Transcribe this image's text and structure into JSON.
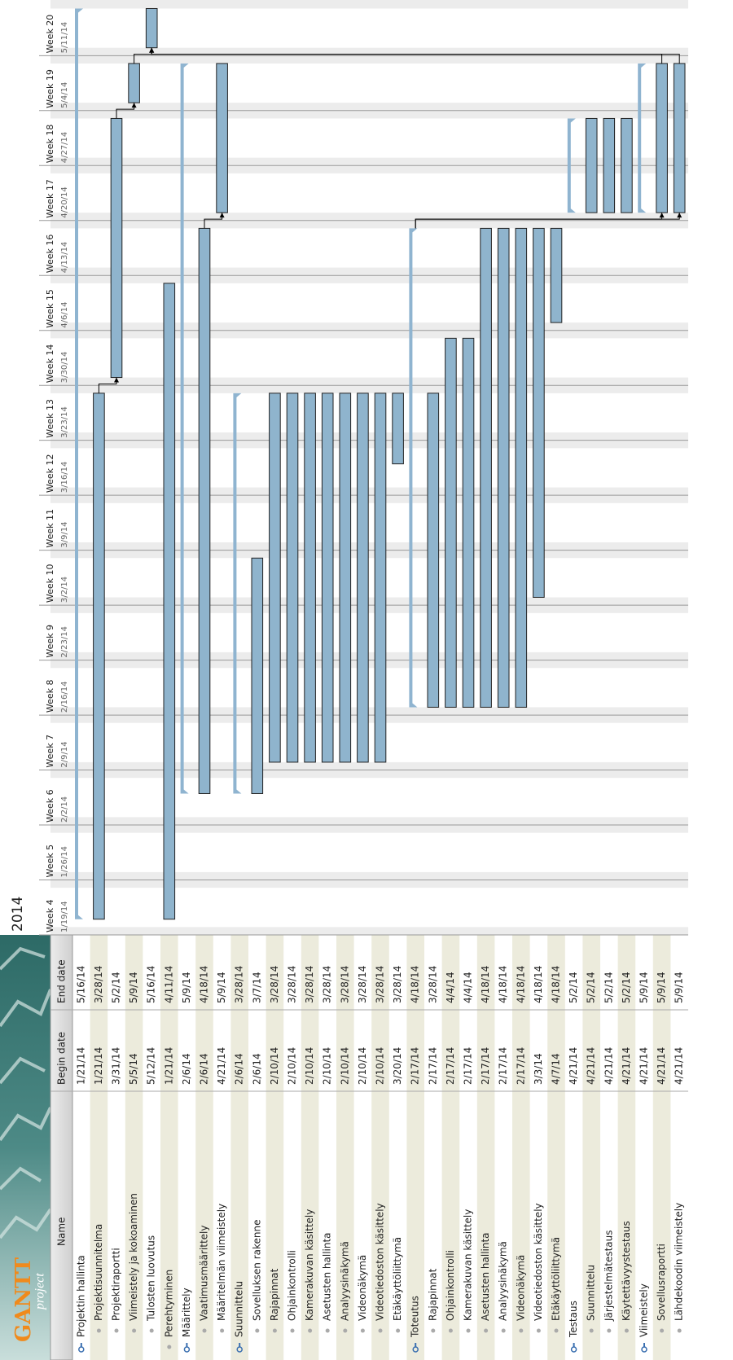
{
  "header": {
    "logo": "GANTT",
    "logo_sub": "project",
    "year": "2014"
  },
  "table": {
    "columns": [
      "Name",
      "Begin date",
      "End date"
    ],
    "rows": [
      {
        "name": "Projektin hallinta",
        "begin": "1/21/14",
        "end": "5/16/14",
        "level": 0,
        "summary": true
      },
      {
        "name": "Projektisuunnitelma",
        "begin": "1/21/14",
        "end": "3/28/14",
        "level": 1,
        "summary": false
      },
      {
        "name": "Projektiraportti",
        "begin": "3/31/14",
        "end": "5/2/14",
        "level": 1,
        "summary": false
      },
      {
        "name": "Viimeistely ja kokoaminen",
        "begin": "5/5/14",
        "end": "5/9/14",
        "level": 1,
        "summary": false
      },
      {
        "name": "Tulosten luovutus",
        "begin": "5/12/14",
        "end": "5/16/14",
        "level": 1,
        "summary": false
      },
      {
        "name": "Perehtyminen",
        "begin": "1/21/14",
        "end": "4/11/14",
        "level": 0,
        "summary": false
      },
      {
        "name": "Määrittely",
        "begin": "2/6/14",
        "end": "5/9/14",
        "level": 0,
        "summary": true
      },
      {
        "name": "Vaatimusmäärittely",
        "begin": "2/6/14",
        "end": "4/18/14",
        "level": 1,
        "summary": false
      },
      {
        "name": "Määritelmän viimeistely",
        "begin": "4/21/14",
        "end": "5/9/14",
        "level": 1,
        "summary": false
      },
      {
        "name": "Suunnittelu",
        "begin": "2/6/14",
        "end": "3/28/14",
        "level": 0,
        "summary": true
      },
      {
        "name": "Sovelluksen rakenne",
        "begin": "2/6/14",
        "end": "3/7/14",
        "level": 1,
        "summary": false
      },
      {
        "name": "Rajapinnat",
        "begin": "2/10/14",
        "end": "3/28/14",
        "level": 1,
        "summary": false
      },
      {
        "name": "Ohjainkontrolli",
        "begin": "2/10/14",
        "end": "3/28/14",
        "level": 1,
        "summary": false
      },
      {
        "name": "Kamerakuvan käsittely",
        "begin": "2/10/14",
        "end": "3/28/14",
        "level": 1,
        "summary": false
      },
      {
        "name": "Asetusten hallinta",
        "begin": "2/10/14",
        "end": "3/28/14",
        "level": 1,
        "summary": false
      },
      {
        "name": "Analyysinäkymä",
        "begin": "2/10/14",
        "end": "3/28/14",
        "level": 1,
        "summary": false
      },
      {
        "name": "Videonäkymä",
        "begin": "2/10/14",
        "end": "3/28/14",
        "level": 1,
        "summary": false
      },
      {
        "name": "Videotiedoston käsittely",
        "begin": "2/10/14",
        "end": "3/28/14",
        "level": 1,
        "summary": false
      },
      {
        "name": "Etäkäyttöliittymä",
        "begin": "3/20/14",
        "end": "3/28/14",
        "level": 1,
        "summary": false
      },
      {
        "name": "Toteutus",
        "begin": "2/17/14",
        "end": "4/18/14",
        "level": 0,
        "summary": true
      },
      {
        "name": "Rajapinnat",
        "begin": "2/17/14",
        "end": "3/28/14",
        "level": 1,
        "summary": false
      },
      {
        "name": "Ohjainkontrolli",
        "begin": "2/17/14",
        "end": "4/4/14",
        "level": 1,
        "summary": false
      },
      {
        "name": "Kamerakuvan käsittely",
        "begin": "2/17/14",
        "end": "4/4/14",
        "level": 1,
        "summary": false
      },
      {
        "name": "Asetusten hallinta",
        "begin": "2/17/14",
        "end": "4/18/14",
        "level": 1,
        "summary": false
      },
      {
        "name": "Analyysinäkymä",
        "begin": "2/17/14",
        "end": "4/18/14",
        "level": 1,
        "summary": false
      },
      {
        "name": "Videonäkymä",
        "begin": "2/17/14",
        "end": "4/18/14",
        "level": 1,
        "summary": false
      },
      {
        "name": "Videotiedoston käsittely",
        "begin": "3/3/14",
        "end": "4/18/14",
        "level": 1,
        "summary": false
      },
      {
        "name": "Etäkäyttöliittymä",
        "begin": "4/7/14",
        "end": "4/18/14",
        "level": 1,
        "summary": false
      },
      {
        "name": "Testaus",
        "begin": "4/21/14",
        "end": "5/2/14",
        "level": 0,
        "summary": true
      },
      {
        "name": "Suunnittelu",
        "begin": "4/21/14",
        "end": "5/2/14",
        "level": 1,
        "summary": false
      },
      {
        "name": "Järjestelmätestaus",
        "begin": "4/21/14",
        "end": "5/2/14",
        "level": 1,
        "summary": false
      },
      {
        "name": "Käytettävyystestaus",
        "begin": "4/21/14",
        "end": "5/2/14",
        "level": 1,
        "summary": false
      },
      {
        "name": "Viimeistely",
        "begin": "4/21/14",
        "end": "5/9/14",
        "level": 0,
        "summary": true
      },
      {
        "name": "Sovellusraportti",
        "begin": "4/21/14",
        "end": "5/9/14",
        "level": 1,
        "summary": false
      },
      {
        "name": "Lähdekoodin viimeistely",
        "begin": "4/21/14",
        "end": "5/9/14",
        "level": 1,
        "summary": false
      }
    ]
  },
  "weeks": [
    {
      "label": "Week 4",
      "date": "1/19/14"
    },
    {
      "label": "Week 5",
      "date": "1/26/14"
    },
    {
      "label": "Week 6",
      "date": "2/2/14"
    },
    {
      "label": "Week 7",
      "date": "2/9/14"
    },
    {
      "label": "Week 8",
      "date": "2/16/14"
    },
    {
      "label": "Week 9",
      "date": "2/23/14"
    },
    {
      "label": "Week 10",
      "date": "3/2/14"
    },
    {
      "label": "Week 11",
      "date": "3/9/14"
    },
    {
      "label": "Week 12",
      "date": "3/16/14"
    },
    {
      "label": "Week 13",
      "date": "3/23/14"
    },
    {
      "label": "Week 14",
      "date": "3/30/14"
    },
    {
      "label": "Week 15",
      "date": "4/6/14"
    },
    {
      "label": "Week 16",
      "date": "4/13/14"
    },
    {
      "label": "Week 17",
      "date": "4/20/14"
    },
    {
      "label": "Week 18",
      "date": "4/27/14"
    },
    {
      "label": "Week 19",
      "date": "5/4/14"
    },
    {
      "label": "Week 20",
      "date": "5/11/14"
    }
  ]
}
